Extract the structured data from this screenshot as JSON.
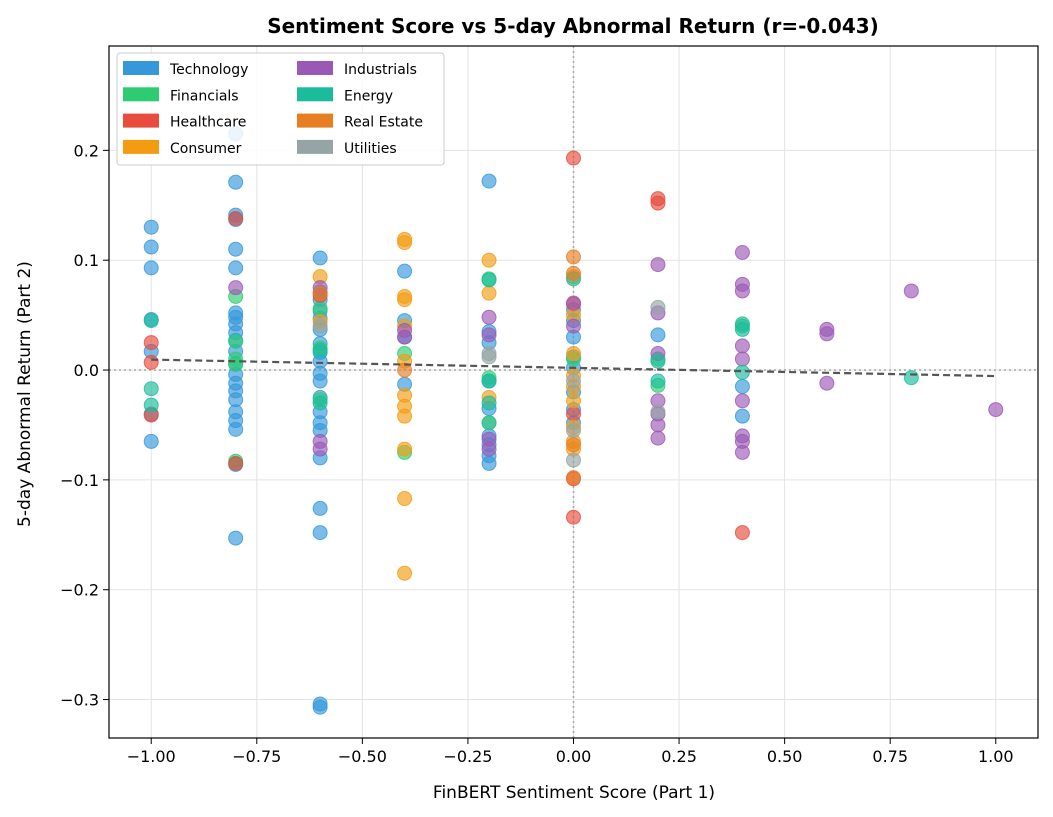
{
  "chart_data": {
    "type": "scatter",
    "title": "Sentiment Score vs 5-day Abnormal Return (r=-0.043)",
    "xlabel": "FinBERT Sentiment Score (Part 1)",
    "ylabel": "5-day Abnormal Return (Part 2)",
    "xlim": [
      -1.1,
      1.1
    ],
    "ylim": [
      -0.335,
      0.295
    ],
    "xticks": [
      -1.0,
      -0.75,
      -0.5,
      -0.25,
      0.0,
      0.25,
      0.5,
      0.75,
      1.0
    ],
    "xtick_labels": [
      "−1.00",
      "−0.75",
      "−0.50",
      "−0.25",
      "0.00",
      "0.25",
      "0.50",
      "0.75",
      "1.00"
    ],
    "yticks": [
      -0.3,
      -0.2,
      -0.1,
      0.0,
      0.1,
      0.2
    ],
    "ytick_labels": [
      "−0.3",
      "−0.2",
      "−0.1",
      "0.0",
      "0.1",
      "0.2"
    ],
    "grid": true,
    "legend_placement": "top-left",
    "reference_lines": {
      "x": 0.0,
      "y": 0.0,
      "style": "dotted"
    },
    "trendline": {
      "x": [
        -1.0,
        1.0
      ],
      "y": [
        0.0095,
        -0.0055
      ],
      "style": "dashed",
      "color": "#555555"
    },
    "series": [
      {
        "name": "Technology",
        "color": "#3498db",
        "points": [
          [
            -1.0,
            0.13
          ],
          [
            -1.0,
            0.112
          ],
          [
            -1.0,
            0.093
          ],
          [
            -1.0,
            0.046
          ],
          [
            -1.0,
            0.017
          ],
          [
            -1.0,
            -0.04
          ],
          [
            -1.0,
            -0.065
          ],
          [
            -0.8,
            0.215
          ],
          [
            -0.8,
            0.171
          ],
          [
            -0.8,
            0.141
          ],
          [
            -0.8,
            0.137
          ],
          [
            -0.8,
            0.11
          ],
          [
            -0.8,
            0.093
          ],
          [
            -0.8,
            0.052
          ],
          [
            -0.8,
            0.048
          ],
          [
            -0.8,
            0.042
          ],
          [
            -0.8,
            0.034
          ],
          [
            -0.8,
            0.027
          ],
          [
            -0.8,
            0.017
          ],
          [
            -0.8,
            0.006
          ],
          [
            -0.8,
            -0.004
          ],
          [
            -0.8,
            -0.012
          ],
          [
            -0.8,
            -0.019
          ],
          [
            -0.8,
            -0.027
          ],
          [
            -0.8,
            -0.038
          ],
          [
            -0.8,
            -0.046
          ],
          [
            -0.8,
            -0.054
          ],
          [
            -0.8,
            -0.086
          ],
          [
            -0.8,
            -0.153
          ],
          [
            -0.6,
            0.102
          ],
          [
            -0.6,
            0.071
          ],
          [
            -0.6,
            0.064
          ],
          [
            -0.6,
            0.054
          ],
          [
            -0.6,
            0.047
          ],
          [
            -0.6,
            0.037
          ],
          [
            -0.6,
            0.024
          ],
          [
            -0.6,
            0.016
          ],
          [
            -0.6,
            0.008
          ],
          [
            -0.6,
            -0.003
          ],
          [
            -0.6,
            -0.01
          ],
          [
            -0.6,
            -0.025
          ],
          [
            -0.6,
            -0.038
          ],
          [
            -0.6,
            -0.048
          ],
          [
            -0.6,
            -0.055
          ],
          [
            -0.6,
            -0.08
          ],
          [
            -0.6,
            -0.126
          ],
          [
            -0.6,
            -0.148
          ],
          [
            -0.6,
            -0.304
          ],
          [
            -0.6,
            -0.307
          ],
          [
            -0.4,
            0.09
          ],
          [
            -0.4,
            0.045
          ],
          [
            -0.4,
            0.03
          ],
          [
            -0.4,
            -0.013
          ],
          [
            -0.2,
            0.172
          ],
          [
            -0.2,
            0.035
          ],
          [
            -0.2,
            0.025
          ],
          [
            -0.2,
            -0.01
          ],
          [
            -0.2,
            -0.035
          ],
          [
            -0.2,
            -0.048
          ],
          [
            -0.2,
            -0.06
          ],
          [
            -0.2,
            -0.068
          ],
          [
            -0.2,
            -0.078
          ],
          [
            -0.2,
            -0.085
          ],
          [
            0.0,
            0.055
          ],
          [
            0.0,
            0.045
          ],
          [
            0.0,
            0.03
          ],
          [
            0.0,
            0.012
          ],
          [
            0.0,
            0.002
          ],
          [
            0.0,
            -0.02
          ],
          [
            0.0,
            -0.036
          ],
          [
            0.0,
            -0.048
          ],
          [
            0.2,
            0.032
          ],
          [
            0.4,
            -0.015
          ],
          [
            0.4,
            -0.042
          ]
        ]
      },
      {
        "name": "Financials",
        "color": "#2ecc71",
        "points": [
          [
            -0.8,
            0.067
          ],
          [
            -0.8,
            0.026
          ],
          [
            -0.8,
            0.01
          ],
          [
            -0.8,
            0.005
          ],
          [
            -0.8,
            -0.083
          ],
          [
            -0.6,
            0.056
          ],
          [
            -0.6,
            0.02
          ],
          [
            -0.6,
            -0.027
          ],
          [
            -0.4,
            0.015
          ],
          [
            -0.4,
            -0.075
          ],
          [
            -0.2,
            0.083
          ],
          [
            -0.2,
            -0.007
          ],
          [
            -0.2,
            -0.048
          ],
          [
            0.0,
            0.01
          ],
          [
            0.2,
            0.01
          ],
          [
            0.2,
            -0.014
          ],
          [
            0.4,
            0.04
          ]
        ]
      },
      {
        "name": "Healthcare",
        "color": "#e74c3c",
        "points": [
          [
            -1.0,
            0.025
          ],
          [
            -1.0,
            0.007
          ],
          [
            -1.0,
            -0.041
          ],
          [
            -0.8,
            0.138
          ],
          [
            -0.8,
            -0.085
          ],
          [
            -0.6,
            0.068
          ],
          [
            0.0,
            0.193
          ],
          [
            0.0,
            0.06
          ],
          [
            0.0,
            -0.04
          ],
          [
            0.0,
            -0.099
          ],
          [
            0.0,
            -0.134
          ],
          [
            0.2,
            0.156
          ],
          [
            0.2,
            0.152
          ],
          [
            0.4,
            -0.148
          ]
        ]
      },
      {
        "name": "Consumer",
        "color": "#f39c12",
        "points": [
          [
            -0.6,
            0.085
          ],
          [
            -0.6,
            0.044
          ],
          [
            -0.4,
            0.119
          ],
          [
            -0.4,
            0.116
          ],
          [
            -0.4,
            0.067
          ],
          [
            -0.4,
            0.064
          ],
          [
            -0.4,
            0.04
          ],
          [
            -0.4,
            0.008
          ],
          [
            -0.4,
            -0.023
          ],
          [
            -0.4,
            -0.033
          ],
          [
            -0.4,
            -0.042
          ],
          [
            -0.4,
            -0.072
          ],
          [
            -0.4,
            -0.117
          ],
          [
            -0.4,
            -0.185
          ],
          [
            -0.2,
            0.1
          ],
          [
            -0.2,
            0.07
          ],
          [
            -0.2,
            -0.025
          ],
          [
            0.0,
            0.085
          ],
          [
            0.0,
            0.05
          ],
          [
            0.0,
            0.015
          ],
          [
            0.0,
            -0.005
          ],
          [
            0.0,
            -0.015
          ],
          [
            0.0,
            -0.028
          ],
          [
            0.0,
            -0.052
          ],
          [
            0.0,
            -0.065
          ],
          [
            0.0,
            -0.072
          ]
        ]
      },
      {
        "name": "Industrials",
        "color": "#9b59b6",
        "points": [
          [
            -0.8,
            0.075
          ],
          [
            -0.6,
            0.075
          ],
          [
            -0.6,
            -0.065
          ],
          [
            -0.6,
            -0.072
          ],
          [
            -0.4,
            0.036
          ],
          [
            -0.4,
            0.03
          ],
          [
            -0.2,
            0.048
          ],
          [
            -0.2,
            0.032
          ],
          [
            -0.2,
            -0.063
          ],
          [
            -0.2,
            -0.072
          ],
          [
            0.0,
            0.061
          ],
          [
            0.0,
            0.04
          ],
          [
            0.2,
            0.096
          ],
          [
            0.2,
            0.052
          ],
          [
            0.2,
            0.015
          ],
          [
            0.2,
            -0.028
          ],
          [
            0.2,
            -0.04
          ],
          [
            0.2,
            -0.05
          ],
          [
            0.2,
            -0.062
          ],
          [
            0.4,
            0.107
          ],
          [
            0.4,
            0.078
          ],
          [
            0.4,
            0.072
          ],
          [
            0.4,
            0.022
          ],
          [
            0.4,
            0.01
          ],
          [
            0.4,
            -0.028
          ],
          [
            0.4,
            -0.06
          ],
          [
            0.4,
            -0.065
          ],
          [
            0.4,
            -0.075
          ],
          [
            0.6,
            0.037
          ],
          [
            0.6,
            0.033
          ],
          [
            0.6,
            -0.012
          ],
          [
            0.8,
            0.072
          ],
          [
            1.0,
            -0.036
          ]
        ]
      },
      {
        "name": "Energy",
        "color": "#1abc9c",
        "points": [
          [
            -1.0,
            0.045
          ],
          [
            -1.0,
            -0.017
          ],
          [
            -1.0,
            -0.032
          ],
          [
            -0.6,
            0.018
          ],
          [
            -0.6,
            -0.03
          ],
          [
            -0.2,
            0.082
          ],
          [
            -0.2,
            -0.01
          ],
          [
            -0.2,
            -0.03
          ],
          [
            0.0,
            0.083
          ],
          [
            0.2,
            0.008
          ],
          [
            0.2,
            -0.01
          ],
          [
            0.4,
            0.042
          ],
          [
            0.4,
            0.037
          ],
          [
            0.4,
            -0.002
          ],
          [
            0.8,
            -0.007
          ]
        ]
      },
      {
        "name": "Real Estate",
        "color": "#e67e22",
        "points": [
          [
            -0.6,
            0.07
          ],
          [
            -0.4,
            0.0
          ],
          [
            0.0,
            0.103
          ],
          [
            0.0,
            0.088
          ],
          [
            0.0,
            -0.068
          ],
          [
            0.0,
            -0.098
          ]
        ]
      },
      {
        "name": "Utilities",
        "color": "#95a5a6",
        "points": [
          [
            -0.6,
            0.04
          ],
          [
            -0.2,
            0.015
          ],
          [
            -0.2,
            0.012
          ],
          [
            0.0,
            -0.01
          ],
          [
            0.0,
            -0.055
          ],
          [
            0.0,
            -0.082
          ],
          [
            0.2,
            0.057
          ],
          [
            0.2,
            -0.038
          ]
        ]
      }
    ]
  }
}
